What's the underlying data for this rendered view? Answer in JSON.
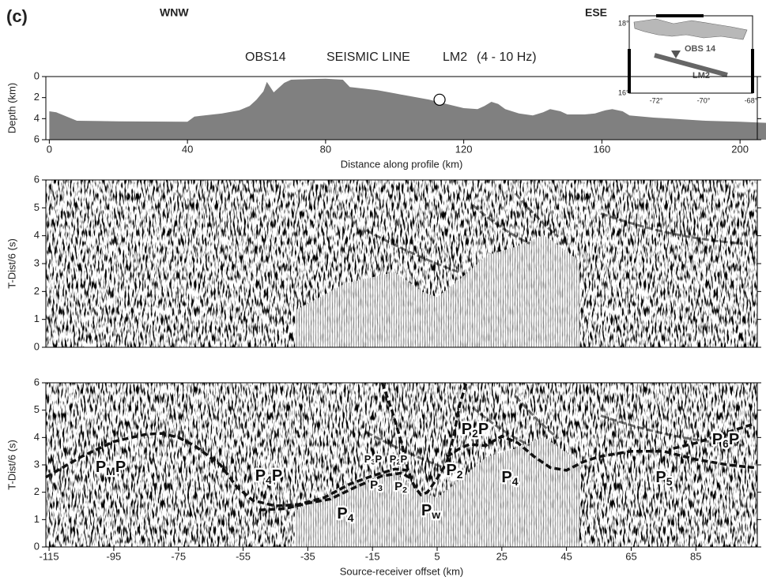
{
  "panel_label": "(c)",
  "left_direction": "WNW",
  "right_direction": "ESE",
  "title_parts": [
    "OBS14",
    "SEISMIC LINE",
    "LM2",
    "(4 - 10 Hz)"
  ],
  "inset": {
    "lat_labels": [
      "18°",
      "16°"
    ],
    "lon_labels": [
      "-72°",
      "-70°",
      "-68°"
    ],
    "station": "OBS 14",
    "line": "LM2"
  },
  "chart_data": [
    {
      "type": "area",
      "color": "#808080",
      "x": [
        0,
        2,
        8,
        20,
        40,
        42,
        50,
        55,
        58,
        60,
        62,
        63,
        65,
        67,
        68,
        70,
        75,
        80,
        85,
        87,
        90,
        95,
        100,
        110,
        115,
        120,
        124,
        126,
        128,
        130,
        132,
        136,
        140,
        143,
        145,
        148,
        150,
        155,
        158,
        161,
        163,
        166,
        168,
        175,
        180,
        190,
        200,
        208
      ],
      "values": [
        3.3,
        3.4,
        4.2,
        4.25,
        4.3,
        3.8,
        3.5,
        3.2,
        2.8,
        2.2,
        1.4,
        0.5,
        1.5,
        0.9,
        0.6,
        0.3,
        0.25,
        0.2,
        0.3,
        1.0,
        1.1,
        1.3,
        1.6,
        2.2,
        2.6,
        3.0,
        3.1,
        2.8,
        2.4,
        2.6,
        3.1,
        3.5,
        3.7,
        3.4,
        3.1,
        3.3,
        3.6,
        3.6,
        3.5,
        3.2,
        3.1,
        3.3,
        3.7,
        3.9,
        4.0,
        4.2,
        4.3,
        4.4
      ],
      "obs_marker": {
        "x": 113,
        "y": 2.2
      },
      "xlim": [
        -1,
        205
      ],
      "ylim": [
        6,
        0
      ],
      "xticks": [
        0,
        40,
        80,
        120,
        160,
        200
      ],
      "yticks": [
        0,
        2,
        4,
        6
      ],
      "xlabel": "Distance along profile (km)",
      "ylabel": "Depth (km)"
    },
    {
      "type": "seismic",
      "xlim": [
        -116,
        104
      ],
      "ylim": [
        0,
        6
      ],
      "yticks": [
        0,
        1,
        2,
        3,
        4,
        5,
        6
      ],
      "ylabel": "T-Dist/6 (s)"
    },
    {
      "type": "seismic",
      "xlim": [
        -116,
        104
      ],
      "ylim": [
        0,
        6
      ],
      "xticks": [
        -115,
        -95,
        -75,
        -55,
        -35,
        -15,
        5,
        25,
        45,
        65,
        85
      ],
      "yticks": [
        0,
        1,
        2,
        3,
        4,
        5,
        6
      ],
      "xlabel": "Source-receiver offset (km)",
      "ylabel": "T-Dist/6 (s)",
      "line_color": "#111111",
      "series": [
        {
          "x": [
            -116,
            -105,
            -95,
            -85,
            -80,
            -75,
            -70,
            -62,
            -57,
            -52,
            -45,
            -38,
            -30,
            -22,
            -15,
            -8,
            -4
          ],
          "values": [
            2.55,
            3.3,
            3.85,
            4.12,
            4.15,
            4.0,
            3.7,
            3.0,
            2.2,
            1.7,
            1.5,
            1.55,
            1.8,
            2.3,
            2.6,
            2.85,
            2.8
          ]
        },
        {
          "x": [
            -50,
            -42,
            -35,
            -28,
            -20,
            -12,
            -6,
            -3
          ],
          "values": [
            1.35,
            1.4,
            1.6,
            1.75,
            2.2,
            2.6,
            2.7,
            2.5
          ]
        },
        {
          "x": [
            -12,
            -9,
            -6,
            -4,
            -2,
            0,
            2,
            5,
            8,
            10,
            12,
            14
          ],
          "values": [
            6.0,
            5.0,
            3.8,
            2.8,
            2.2,
            1.9,
            2.0,
            2.5,
            3.1,
            4.0,
            5.2,
            6.0
          ]
        },
        {
          "x": [
            8,
            12,
            15,
            20,
            25,
            30,
            35,
            40,
            45,
            50,
            55,
            65,
            75,
            85,
            95,
            103
          ],
          "values": [
            3.3,
            3.6,
            3.75,
            3.7,
            4.05,
            3.8,
            3.3,
            2.9,
            2.8,
            3.1,
            3.3,
            3.5,
            3.5,
            3.2,
            3.0,
            2.9
          ]
        },
        {
          "x": [
            78,
            85,
            90,
            95,
            103
          ],
          "values": [
            3.6,
            3.8,
            4.0,
            4.2,
            4.5
          ]
        }
      ],
      "phase_labels": [
        {
          "base": "P",
          "sub": "M",
          "tail": "P"
        },
        {
          "base": "P",
          "sub": "4",
          "tail": "P"
        },
        {
          "base": "P",
          "sub": "3",
          "tail": "P"
        },
        {
          "base": "P",
          "sub": "2",
          "tail": "P"
        },
        {
          "base": "P",
          "sub": "3"
        },
        {
          "base": "P",
          "sub": "2"
        },
        {
          "base": "P",
          "sub": "4"
        },
        {
          "base": "P",
          "sub": "w"
        },
        {
          "base": "P",
          "sub": "2"
        },
        {
          "base": "P",
          "sub": "4"
        },
        {
          "base": "P",
          "sub": "5"
        },
        {
          "base": "P",
          "sub": "2",
          "tail": "P"
        },
        {
          "base": "P",
          "sub": "6",
          "tail": "P"
        }
      ]
    }
  ]
}
